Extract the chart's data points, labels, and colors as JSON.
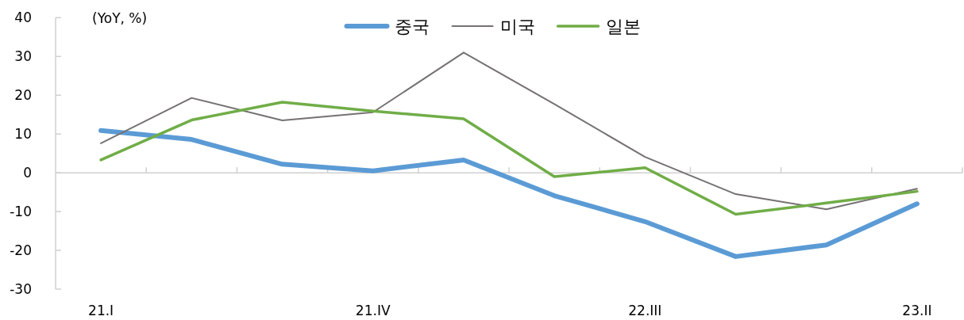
{
  "chart_data": {
    "type": "line",
    "ylabel": "(YoY, %)",
    "categories": [
      "21.I",
      null,
      null,
      "21.IV",
      null,
      null,
      "22.III",
      null,
      null,
      "23.II"
    ],
    "series": [
      {
        "name": "중국",
        "color": "#5b9bd5",
        "values": [
          10.9,
          8.6,
          2.2,
          0.5,
          3.3,
          -5.9,
          -12.6,
          -21.6,
          -18.6,
          -8.0
        ]
      },
      {
        "name": "미국",
        "color": "#767171",
        "values": [
          7.6,
          19.3,
          13.5,
          15.6,
          31.0,
          17.7,
          4.1,
          -5.5,
          -9.4,
          -4.1
        ]
      },
      {
        "name": "일본",
        "color": "#70ad47",
        "values": [
          3.3,
          13.6,
          18.2,
          15.9,
          13.9,
          -1.0,
          1.3,
          -10.7,
          -7.8,
          -4.8
        ]
      }
    ],
    "ylim": [
      -30,
      40
    ],
    "yticks": [
      -30,
      -20,
      -10,
      0,
      10,
      20,
      30,
      40
    ],
    "legend": "top"
  }
}
